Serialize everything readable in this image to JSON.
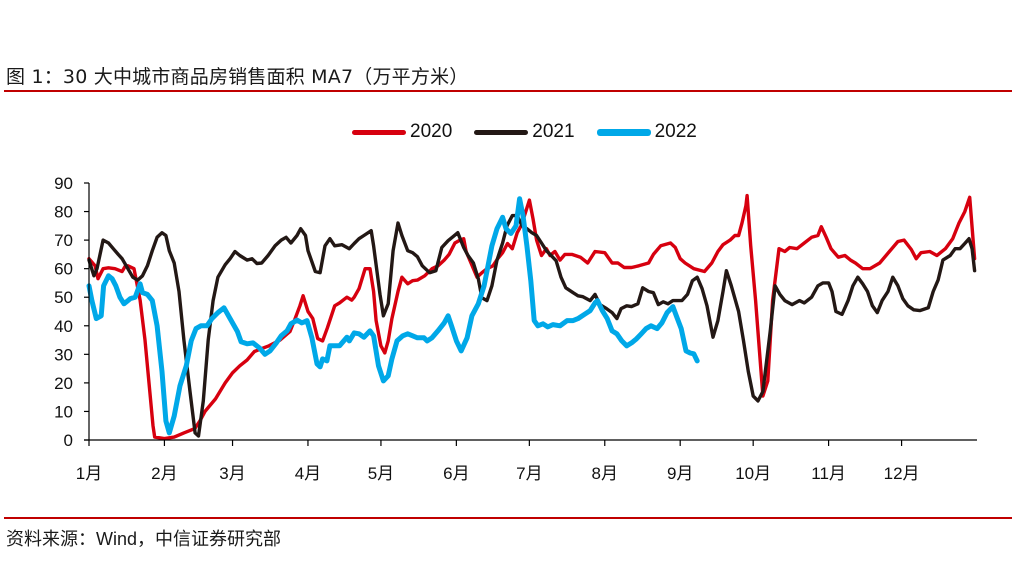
{
  "header": {
    "title": "图 1：30 大中城市商品房销售面积 MA7（万平方米）"
  },
  "footer": {
    "source": "资料来源：Wind，中信证券研究部"
  },
  "colors": {
    "rule": "#c00000",
    "2020": "#d7000f",
    "2021": "#231815",
    "2022": "#00a8e8"
  },
  "chart_data": {
    "type": "line",
    "title": "30 大中城市商品房销售面积 MA7（万平方米）",
    "xlabel": "",
    "ylabel": "",
    "x_unit": "day of year",
    "xlim": [
      0,
      365
    ],
    "ylim": [
      0,
      90
    ],
    "yticks": [
      0,
      10,
      20,
      30,
      40,
      50,
      60,
      70,
      80,
      90
    ],
    "ytick_labels": [
      "0",
      "10",
      "20",
      "30",
      "40",
      "50",
      "60",
      "70",
      "80",
      "90"
    ],
    "xticks": [
      0,
      31,
      59,
      90,
      120,
      151,
      181,
      212,
      243,
      273,
      304,
      334
    ],
    "xtick_labels": [
      "1月",
      "2月",
      "3月",
      "4月",
      "5月",
      "6月",
      "7月",
      "8月",
      "9月",
      "10月",
      "11月",
      "12月"
    ],
    "grid": false,
    "legend_position": "top-center",
    "series": [
      {
        "name": "2020",
        "x": [
          0,
          2.5,
          3.7,
          5.8,
          8,
          10.7,
          13.6,
          15,
          16,
          18.5,
          21,
          23,
          25,
          26.3,
          27,
          31,
          35,
          39,
          43.5,
          45.6,
          47.7,
          52,
          56,
          59,
          62,
          65,
          68,
          71,
          74,
          78.5,
          82.6,
          84.7,
          86.7,
          88,
          90,
          92,
          94,
          96,
          98,
          101,
          103,
          106,
          108,
          109,
          111,
          113.5,
          115.5,
          117,
          118,
          120,
          121.6,
          123,
          124.5,
          127,
          128.6,
          131,
          133,
          135,
          138,
          141,
          143.5,
          146,
          148,
          150.4,
          152.5,
          154,
          155,
          157,
          159.5,
          161.5,
          163.6,
          166,
          168,
          170,
          172,
          174,
          176,
          177.6,
          179,
          181,
          182.5,
          184,
          186,
          188,
          189.5,
          191.5,
          193.6,
          195.6,
          198.5,
          202,
          205,
          208,
          212,
          215,
          217.4,
          220,
          223,
          226,
          230,
          232,
          235,
          239,
          241,
          243,
          245,
          248.6,
          253,
          256,
          258.5,
          260.6,
          263.5,
          265.5,
          267,
          268.4,
          270,
          270.5,
          272,
          274,
          277,
          279,
          281,
          283.6,
          286,
          288,
          291,
          294,
          297,
          299.6,
          301,
          303,
          305,
          308,
          310.7,
          313,
          315,
          318,
          321,
          325,
          329,
          332.5,
          335,
          338,
          340,
          342,
          345.6,
          348.5,
          352,
          355,
          357.6,
          360,
          362,
          364
        ],
        "values": [
          63.5,
          61,
          56.5,
          60,
          60.3,
          60,
          59,
          61,
          61,
          60,
          49,
          35,
          17,
          5,
          1,
          0.5,
          1,
          2.5,
          4,
          6.7,
          10,
          14.4,
          20,
          23.5,
          26,
          28,
          31,
          32,
          33,
          35,
          38,
          42.5,
          47,
          50.5,
          45,
          42.5,
          35.5,
          34.7,
          39.3,
          47,
          48,
          50,
          49,
          50,
          53,
          60,
          60,
          52,
          41.8,
          33,
          30.5,
          34.7,
          42.5,
          52,
          57,
          54.7,
          55.8,
          56,
          57.5,
          60,
          61,
          63,
          65,
          69,
          70,
          70.5,
          66,
          62,
          57,
          58.6,
          60,
          61,
          63.5,
          65.6,
          68.8,
          67,
          72.6,
          75,
          78.6,
          84,
          77.5,
          70,
          64.6,
          67,
          64.6,
          66,
          63,
          65,
          65,
          64,
          62,
          66,
          65.6,
          62,
          62,
          60.4,
          60.4,
          61,
          62,
          65,
          68,
          69,
          67.4,
          63.5,
          62,
          60,
          59,
          62,
          66,
          68.4,
          70,
          71.6,
          71.6,
          76,
          82,
          85.6,
          68,
          48.8,
          15.4,
          20.7,
          48.8,
          67,
          66,
          67.4,
          67,
          69,
          71,
          71.6,
          74.7,
          71,
          67,
          64,
          64.6,
          63,
          62,
          60,
          60,
          62,
          66,
          69.5,
          70,
          66.7,
          63.5,
          65.6,
          66,
          64.6,
          67,
          70.5,
          76,
          80,
          85,
          63.5
        ]
      },
      {
        "name": "2021",
        "x": [
          0,
          2,
          3.3,
          5.8,
          8,
          10,
          12,
          13.6,
          16,
          18,
          20,
          22,
          24,
          26,
          28,
          30,
          31.6,
          33,
          35,
          37,
          39,
          41.5,
          43.6,
          45,
          47,
          49,
          51,
          53,
          56,
          58,
          60,
          62,
          65,
          67,
          69,
          71,
          73.6,
          76.5,
          79,
          81,
          83,
          85.5,
          87,
          89,
          90,
          93,
          95,
          97,
          99,
          101,
          104,
          107,
          109,
          111,
          113,
          116,
          117,
          119.6,
          121,
          123,
          125,
          127,
          128.6,
          131,
          133,
          135,
          137,
          140,
          142.6,
          145,
          147.6,
          149.6,
          151.6,
          154,
          155.8,
          158,
          160,
          161.5,
          163.6,
          165.6,
          167.7,
          170,
          171.8,
          174,
          176,
          178,
          180,
          182,
          184,
          186,
          188,
          190,
          192,
          194,
          196,
          199,
          201,
          203,
          206,
          208,
          210,
          212.7,
          215,
          217,
          218.7,
          221,
          223,
          225.6,
          227.6,
          230,
          232,
          234,
          236,
          238,
          240,
          243.7,
          246,
          248,
          250,
          252,
          254,
          256.5,
          258.5,
          260.6,
          262,
          264,
          267,
          269,
          271,
          273,
          275,
          277,
          280,
          282,
          284,
          286,
          289,
          292,
          294,
          297,
          299.6,
          301.7,
          304,
          305.4,
          307,
          309.5,
          312,
          314,
          316,
          318,
          320,
          322,
          324,
          326,
          328.4,
          330.4,
          332.5,
          334.5,
          336.6,
          339,
          341.5,
          345,
          347,
          349,
          351,
          354,
          356,
          358,
          360,
          361.7,
          363,
          364
        ],
        "values": [
          63,
          57.5,
          60,
          70,
          69,
          67,
          65,
          63.5,
          60,
          57,
          56,
          57.5,
          61,
          66.3,
          71,
          72.6,
          71.6,
          66.3,
          62,
          52,
          35,
          17,
          2.5,
          1.4,
          13.7,
          35,
          48.8,
          57,
          61.4,
          63.5,
          66,
          64.6,
          63,
          63.5,
          61.8,
          62,
          64.6,
          68,
          70,
          71,
          69,
          71.6,
          74,
          71.6,
          66.3,
          59,
          58.6,
          68,
          70.5,
          68,
          68.4,
          67,
          68.8,
          70.5,
          71.6,
          73.3,
          68,
          51,
          43.5,
          47.7,
          66.3,
          76,
          71.6,
          66.3,
          65.6,
          64.2,
          61,
          58.6,
          59.3,
          67.4,
          69.8,
          71.2,
          72.6,
          67.4,
          64.6,
          62,
          56.5,
          49.8,
          48.8,
          54,
          63,
          69,
          75,
          78.6,
          78.6,
          75,
          74,
          72.6,
          71.6,
          69,
          66.3,
          64.6,
          62.8,
          57,
          53.3,
          51.6,
          50.5,
          50.2,
          48.8,
          51,
          47.4,
          46,
          44.6,
          42.5,
          46,
          47,
          46.7,
          47.7,
          53.3,
          52,
          51.6,
          47.4,
          48.4,
          47.7,
          48.8,
          48.8,
          51,
          55.8,
          57,
          53,
          47,
          36,
          41.8,
          52,
          59.3,
          54,
          45,
          35,
          24,
          15.4,
          13.7,
          17,
          38,
          54,
          51,
          48.8,
          47.4,
          48.8,
          48,
          50,
          54,
          55,
          55,
          52,
          45,
          44,
          48.8,
          54,
          57,
          54.7,
          52,
          47,
          44.6,
          48.8,
          52,
          57,
          54,
          49.5,
          47,
          45.6,
          45.3,
          46.3,
          52,
          56,
          63,
          64.6,
          67,
          67,
          68.8,
          70.5,
          67,
          59.3
        ]
      },
      {
        "name": "2022",
        "x": [
          0,
          1.2,
          3,
          5,
          6,
          8,
          9.5,
          11,
          12.7,
          14.4,
          17,
          19,
          21,
          22,
          24,
          26,
          28,
          30,
          31.6,
          33,
          35,
          37.4,
          40,
          42,
          44,
          46,
          48.5,
          50.5,
          53,
          55.5,
          58,
          61,
          62.5,
          65,
          67.4,
          70,
          72.3,
          74.4,
          77,
          79,
          81.4,
          83,
          85.5,
          87.5,
          89.6,
          91.6,
          93.7,
          95,
          96,
          97.8,
          99,
          101,
          103,
          106,
          107,
          109,
          111,
          113,
          115.5,
          117,
          119,
          121,
          123,
          124.5,
          126.6,
          129,
          131,
          133,
          135,
          137.7,
          139,
          141,
          143.4,
          146,
          147.6,
          149,
          151,
          153,
          155.4,
          157.4,
          160,
          162.4,
          164,
          165.6,
          167.7,
          170,
          171.4,
          173.4,
          175.5,
          177,
          178.4,
          180,
          181.6,
          183,
          184.5,
          186.6,
          188.6,
          190.7,
          193.6,
          196.5,
          199,
          201,
          204,
          206,
          208,
          209,
          211,
          213,
          215,
          217,
          219,
          221,
          223,
          225,
          227,
          229,
          231,
          233.5,
          235.5,
          237.6,
          240,
          241.4,
          243.4,
          245.4,
          247,
          248.6,
          250
        ],
        "values": [
          54,
          48.8,
          42.5,
          43.5,
          54,
          57.5,
          56.5,
          54,
          50,
          47.7,
          49.5,
          50,
          54.7,
          51.6,
          51,
          48.8,
          40,
          24,
          6.7,
          2.5,
          8.4,
          19,
          26,
          34.7,
          39,
          40,
          40,
          42.5,
          44.6,
          46.3,
          42.5,
          38,
          34.4,
          33.7,
          34,
          32.3,
          30,
          31.2,
          34,
          36.5,
          38.2,
          40.7,
          42,
          41,
          41.8,
          35.8,
          26.7,
          25.6,
          28.4,
          27.7,
          33,
          33,
          33,
          36,
          34.7,
          37.5,
          37.2,
          36,
          38.2,
          36.5,
          26,
          20.7,
          22.5,
          28.4,
          34.7,
          36.5,
          37.2,
          36.5,
          35.8,
          35.8,
          34.7,
          35.8,
          38.2,
          41,
          43.5,
          40,
          34.7,
          31.2,
          35.8,
          43.5,
          47.7,
          54,
          61,
          68,
          74,
          78,
          74,
          72.3,
          75,
          84.5,
          78.6,
          68,
          55.8,
          41.8,
          40,
          40.7,
          39.6,
          40.4,
          40,
          41.8,
          41.8,
          42.5,
          44.2,
          45.3,
          48,
          48.8,
          45.3,
          42.5,
          38.2,
          37.2,
          34.7,
          33,
          34,
          35.4,
          37.2,
          39,
          40,
          39,
          41,
          44.6,
          46.7,
          43.5,
          39,
          31.2,
          30.5,
          30.2,
          27.7
        ]
      }
    ]
  }
}
